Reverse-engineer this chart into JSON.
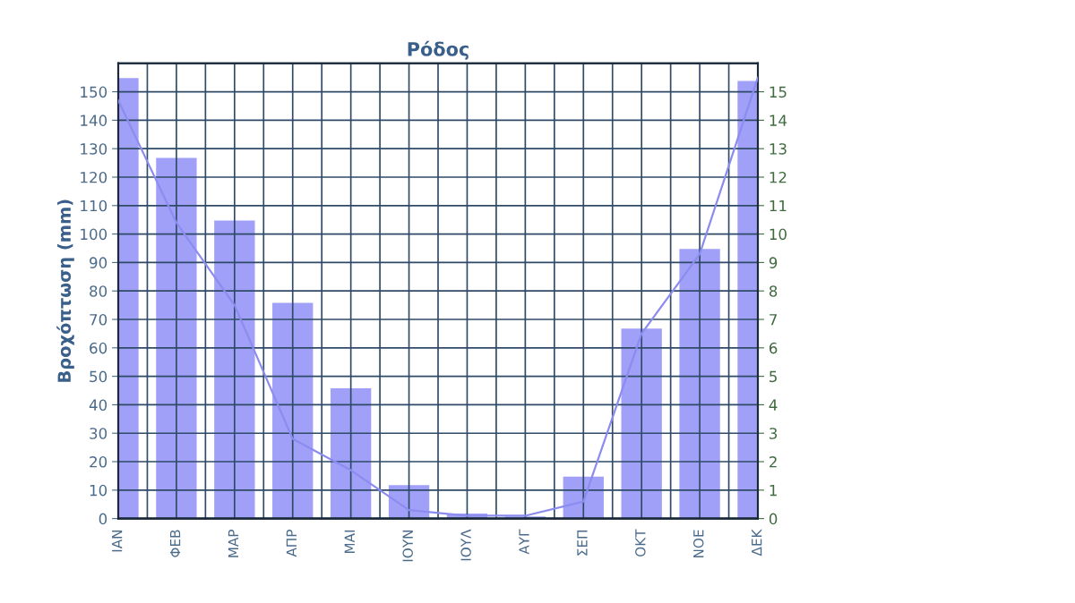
{
  "chart_data": {
    "type": "bar",
    "title": "Ρόδος",
    "ylabel": "Βροχόπτωση (mm)",
    "categories": [
      "ΙΑΝ",
      "ΦΕΒ",
      "ΜΑΡ",
      "ΑΠΡ",
      "ΜΑΙ",
      "ΙΟΥΝ",
      "ΙΟΥΛ",
      "ΑΥΓ",
      "ΣΕΠ",
      "ΟΚΤ",
      "ΝΟΕ",
      "ΔΕΚ"
    ],
    "series": [
      {
        "color": "#a0a0f8",
        "values": [
          155,
          127,
          105,
          76,
          46,
          12,
          2,
          1,
          15,
          67,
          95,
          154
        ]
      },
      {
        "type": "line",
        "axis": "y2",
        "color": "#8c8cf0",
        "values": [
          14.7,
          10.4,
          7.5,
          2.8,
          1.7,
          0.3,
          0.1,
          0.1,
          0.6,
          6.5,
          9.3,
          15.5
        ]
      }
    ],
    "ylim": [
      0,
      160
    ],
    "yticks": [
      0,
      10,
      20,
      30,
      40,
      50,
      60,
      70,
      80,
      90,
      100,
      110,
      120,
      130,
      140,
      150
    ],
    "y2lim": [
      0,
      16
    ],
    "y2ticks": [
      0,
      1,
      2,
      3,
      4,
      5,
      6,
      7,
      8,
      9,
      10,
      11,
      12,
      13,
      14,
      15
    ],
    "grid": true,
    "marker": "none",
    "line_style": "solid"
  }
}
